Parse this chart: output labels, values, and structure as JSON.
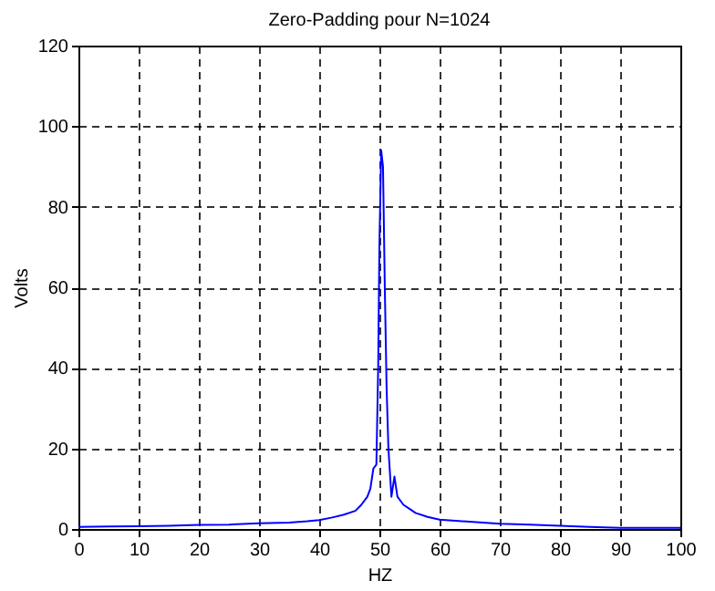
{
  "chart_data": {
    "type": "line",
    "title": "Zero-Padding pour N=1024",
    "xlabel": "HZ",
    "ylabel": "Volts",
    "x": [
      0,
      5,
      10,
      15,
      20,
      25,
      30,
      35,
      38,
      40,
      42,
      44,
      46,
      47,
      48,
      48.5,
      49,
      49.5,
      49.8,
      50,
      50.3,
      50.6,
      50.9,
      51.2,
      51.5,
      52,
      52.5,
      53,
      54,
      55,
      56,
      58,
      60,
      65,
      70,
      75,
      80,
      85,
      90,
      95,
      100
    ],
    "series": [
      {
        "color": "#0000ff",
        "values": [
          0.5,
          0.6,
          0.7,
          0.8,
          1.0,
          1.1,
          1.4,
          1.6,
          1.9,
          2.2,
          2.8,
          3.5,
          4.5,
          6,
          8,
          10,
          15,
          16,
          40,
          70,
          94,
          90,
          60,
          35,
          20,
          8,
          13,
          8,
          6,
          5,
          4,
          3,
          2.3,
          1.8,
          1.3,
          1.1,
          0.8,
          0.5,
          0.3,
          0.3,
          0.3
        ]
      }
    ],
    "xlim": [
      0,
      100
    ],
    "xticks": [
      0,
      10,
      20,
      30,
      40,
      50,
      60,
      70,
      80,
      90,
      100
    ],
    "ylim": [
      0,
      120
    ],
    "yticks": [
      0,
      20,
      40,
      60,
      80,
      100,
      120
    ],
    "grid": true
  }
}
